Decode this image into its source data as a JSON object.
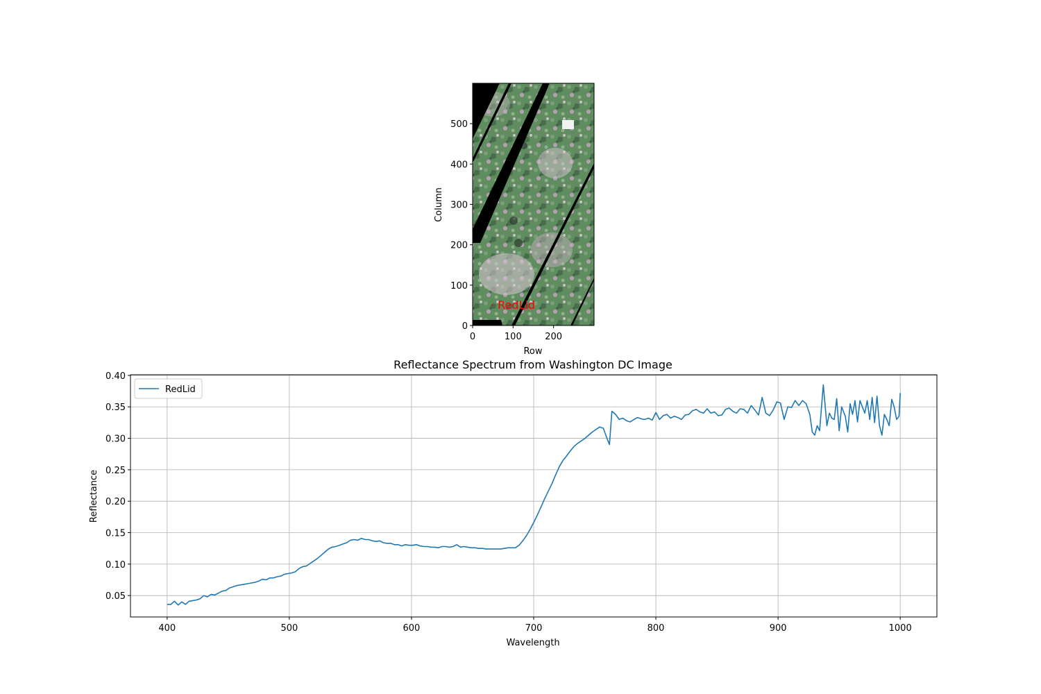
{
  "chart_data": [
    {
      "type": "heatmap",
      "subtype": "rgb-image",
      "xlabel": "Row",
      "ylabel": "Column",
      "xlim": [
        0,
        300
      ],
      "ylim": [
        0,
        600
      ],
      "y_origin": "bottom",
      "xticks": [
        0,
        100,
        200
      ],
      "yticks": [
        0,
        100,
        200,
        300,
        400,
        500
      ],
      "annotation": {
        "text": "· RedLid",
        "x": 45,
        "y": 50,
        "color": "#ff0000"
      },
      "no_data_color": "#000000",
      "dominant_colors": [
        "#5e8a5a",
        "#7a9a78",
        "#b9a3b2",
        "#d8c7d4"
      ],
      "grid": false
    },
    {
      "type": "line",
      "title": "Reflectance Spectrum from Washington DC Image",
      "xlabel": "Wavelength",
      "ylabel": "Reflectance",
      "xlim": [
        370,
        1030
      ],
      "ylim": [
        0.016,
        0.401
      ],
      "xticks": [
        400,
        500,
        600,
        700,
        800,
        900,
        1000
      ],
      "yticks": [
        0.05,
        0.1,
        0.15,
        0.2,
        0.25,
        0.3,
        0.35,
        0.4
      ],
      "ytick_labels": [
        "0.05",
        "0.10",
        "0.15",
        "0.20",
        "0.25",
        "0.30",
        "0.35",
        "0.40"
      ],
      "grid": true,
      "legend": "upper-left",
      "series": [
        {
          "name": "RedLid",
          "color": "#1f77b4",
          "points": [
            [
              400,
              0.036
            ],
            [
              403,
              0.036
            ],
            [
              406,
              0.041
            ],
            [
              409,
              0.035
            ],
            [
              412,
              0.04
            ],
            [
              415,
              0.036
            ],
            [
              418,
              0.041
            ],
            [
              421,
              0.042
            ],
            [
              424,
              0.043
            ],
            [
              427,
              0.045
            ],
            [
              430,
              0.05
            ],
            [
              433,
              0.048
            ],
            [
              436,
              0.052
            ],
            [
              439,
              0.051
            ],
            [
              442,
              0.054
            ],
            [
              445,
              0.057
            ],
            [
              448,
              0.058
            ],
            [
              451,
              0.062
            ],
            [
              454,
              0.064
            ],
            [
              457,
              0.066
            ],
            [
              460,
              0.067
            ],
            [
              463,
              0.068
            ],
            [
              466,
              0.069
            ],
            [
              469,
              0.07
            ],
            [
              472,
              0.071
            ],
            [
              475,
              0.073
            ],
            [
              478,
              0.076
            ],
            [
              481,
              0.075
            ],
            [
              484,
              0.078
            ],
            [
              487,
              0.078
            ],
            [
              490,
              0.08
            ],
            [
              493,
              0.081
            ],
            [
              496,
              0.084
            ],
            [
              499,
              0.085
            ],
            [
              502,
              0.086
            ],
            [
              505,
              0.088
            ],
            [
              508,
              0.093
            ],
            [
              511,
              0.096
            ],
            [
              514,
              0.097
            ],
            [
              517,
              0.101
            ],
            [
              520,
              0.105
            ],
            [
              523,
              0.109
            ],
            [
              526,
              0.114
            ],
            [
              529,
              0.119
            ],
            [
              532,
              0.124
            ],
            [
              535,
              0.127
            ],
            [
              538,
              0.128
            ],
            [
              541,
              0.13
            ],
            [
              544,
              0.132
            ],
            [
              547,
              0.134
            ],
            [
              550,
              0.138
            ],
            [
              553,
              0.139
            ],
            [
              556,
              0.138
            ],
            [
              559,
              0.141
            ],
            [
              562,
              0.139
            ],
            [
              565,
              0.139
            ],
            [
              568,
              0.137
            ],
            [
              571,
              0.136
            ],
            [
              574,
              0.137
            ],
            [
              577,
              0.134
            ],
            [
              580,
              0.133
            ],
            [
              583,
              0.133
            ],
            [
              586,
              0.131
            ],
            [
              589,
              0.131
            ],
            [
              592,
              0.129
            ],
            [
              595,
              0.131
            ],
            [
              598,
              0.13
            ],
            [
              601,
              0.13
            ],
            [
              604,
              0.131
            ],
            [
              607,
              0.129
            ],
            [
              610,
              0.128
            ],
            [
              613,
              0.128
            ],
            [
              616,
              0.127
            ],
            [
              619,
              0.127
            ],
            [
              622,
              0.126
            ],
            [
              625,
              0.128
            ],
            [
              628,
              0.128
            ],
            [
              631,
              0.127
            ],
            [
              634,
              0.128
            ],
            [
              637,
              0.131
            ],
            [
              640,
              0.127
            ],
            [
              643,
              0.128
            ],
            [
              646,
              0.127
            ],
            [
              649,
              0.126
            ],
            [
              652,
              0.126
            ],
            [
              655,
              0.125
            ],
            [
              658,
              0.125
            ],
            [
              661,
              0.124
            ],
            [
              664,
              0.124
            ],
            [
              667,
              0.124
            ],
            [
              670,
              0.124
            ],
            [
              673,
              0.124
            ],
            [
              676,
              0.125
            ],
            [
              679,
              0.126
            ],
            [
              682,
              0.126
            ],
            [
              685,
              0.126
            ],
            [
              688,
              0.13
            ],
            [
              691,
              0.137
            ],
            [
              694,
              0.145
            ],
            [
              697,
              0.155
            ],
            [
              700,
              0.166
            ],
            [
              703,
              0.178
            ],
            [
              706,
              0.191
            ],
            [
              709,
              0.204
            ],
            [
              712,
              0.216
            ],
            [
              715,
              0.228
            ],
            [
              718,
              0.242
            ],
            [
              721,
              0.255
            ],
            [
              724,
              0.265
            ],
            [
              727,
              0.272
            ],
            [
              730,
              0.28
            ],
            [
              733,
              0.287
            ],
            [
              736,
              0.292
            ],
            [
              739,
              0.296
            ],
            [
              742,
              0.3
            ],
            [
              745,
              0.305
            ],
            [
              748,
              0.31
            ],
            [
              751,
              0.314
            ],
            [
              754,
              0.318
            ],
            [
              757,
              0.316
            ],
            [
              760,
              0.3
            ],
            [
              762,
              0.29
            ],
            [
              764,
              0.343
            ],
            [
              767,
              0.338
            ],
            [
              770,
              0.33
            ],
            [
              773,
              0.332
            ],
            [
              776,
              0.328
            ],
            [
              779,
              0.326
            ],
            [
              782,
              0.33
            ],
            [
              785,
              0.333
            ],
            [
              788,
              0.331
            ],
            [
              791,
              0.33
            ],
            [
              794,
              0.332
            ],
            [
              797,
              0.329
            ],
            [
              800,
              0.341
            ],
            [
              803,
              0.33
            ],
            [
              806,
              0.336
            ],
            [
              809,
              0.338
            ],
            [
              812,
              0.332
            ],
            [
              815,
              0.335
            ],
            [
              818,
              0.333
            ],
            [
              821,
              0.33
            ],
            [
              824,
              0.337
            ],
            [
              827,
              0.338
            ],
            [
              830,
              0.344
            ],
            [
              833,
              0.346
            ],
            [
              836,
              0.342
            ],
            [
              839,
              0.34
            ],
            [
              842,
              0.347
            ],
            [
              845,
              0.34
            ],
            [
              848,
              0.342
            ],
            [
              851,
              0.336
            ],
            [
              854,
              0.337
            ],
            [
              857,
              0.346
            ],
            [
              860,
              0.348
            ],
            [
              863,
              0.343
            ],
            [
              866,
              0.34
            ],
            [
              869,
              0.347
            ],
            [
              872,
              0.346
            ],
            [
              875,
              0.34
            ],
            [
              878,
              0.352
            ],
            [
              881,
              0.345
            ],
            [
              884,
              0.337
            ],
            [
              887,
              0.365
            ],
            [
              890,
              0.34
            ],
            [
              893,
              0.336
            ],
            [
              896,
              0.345
            ],
            [
              899,
              0.358
            ],
            [
              902,
              0.356
            ],
            [
              905,
              0.33
            ],
            [
              908,
              0.35
            ],
            [
              911,
              0.349
            ],
            [
              914,
              0.36
            ],
            [
              917,
              0.352
            ],
            [
              920,
              0.36
            ],
            [
              923,
              0.355
            ],
            [
              926,
              0.338
            ],
            [
              928,
              0.31
            ],
            [
              930,
              0.305
            ],
            [
              932,
              0.32
            ],
            [
              934,
              0.312
            ],
            [
              937,
              0.385
            ],
            [
              940,
              0.32
            ],
            [
              942,
              0.34
            ],
            [
              944,
              0.332
            ],
            [
              946,
              0.33
            ],
            [
              948,
              0.363
            ],
            [
              950,
              0.312
            ],
            [
              952,
              0.35
            ],
            [
              955,
              0.335
            ],
            [
              957,
              0.31
            ],
            [
              959,
              0.355
            ],
            [
              961,
              0.338
            ],
            [
              963,
              0.36
            ],
            [
              965,
              0.326
            ],
            [
              967,
              0.36
            ],
            [
              969,
              0.35
            ],
            [
              971,
              0.34
            ],
            [
              973,
              0.36
            ],
            [
              975,
              0.33
            ],
            [
              977,
              0.365
            ],
            [
              979,
              0.325
            ],
            [
              981,
              0.367
            ],
            [
              983,
              0.32
            ],
            [
              985,
              0.305
            ],
            [
              987,
              0.338
            ],
            [
              989,
              0.33
            ],
            [
              991,
              0.32
            ],
            [
              993,
              0.362
            ],
            [
              995,
              0.35
            ],
            [
              997,
              0.33
            ],
            [
              999,
              0.335
            ],
            [
              1000,
              0.372
            ]
          ]
        }
      ]
    }
  ]
}
